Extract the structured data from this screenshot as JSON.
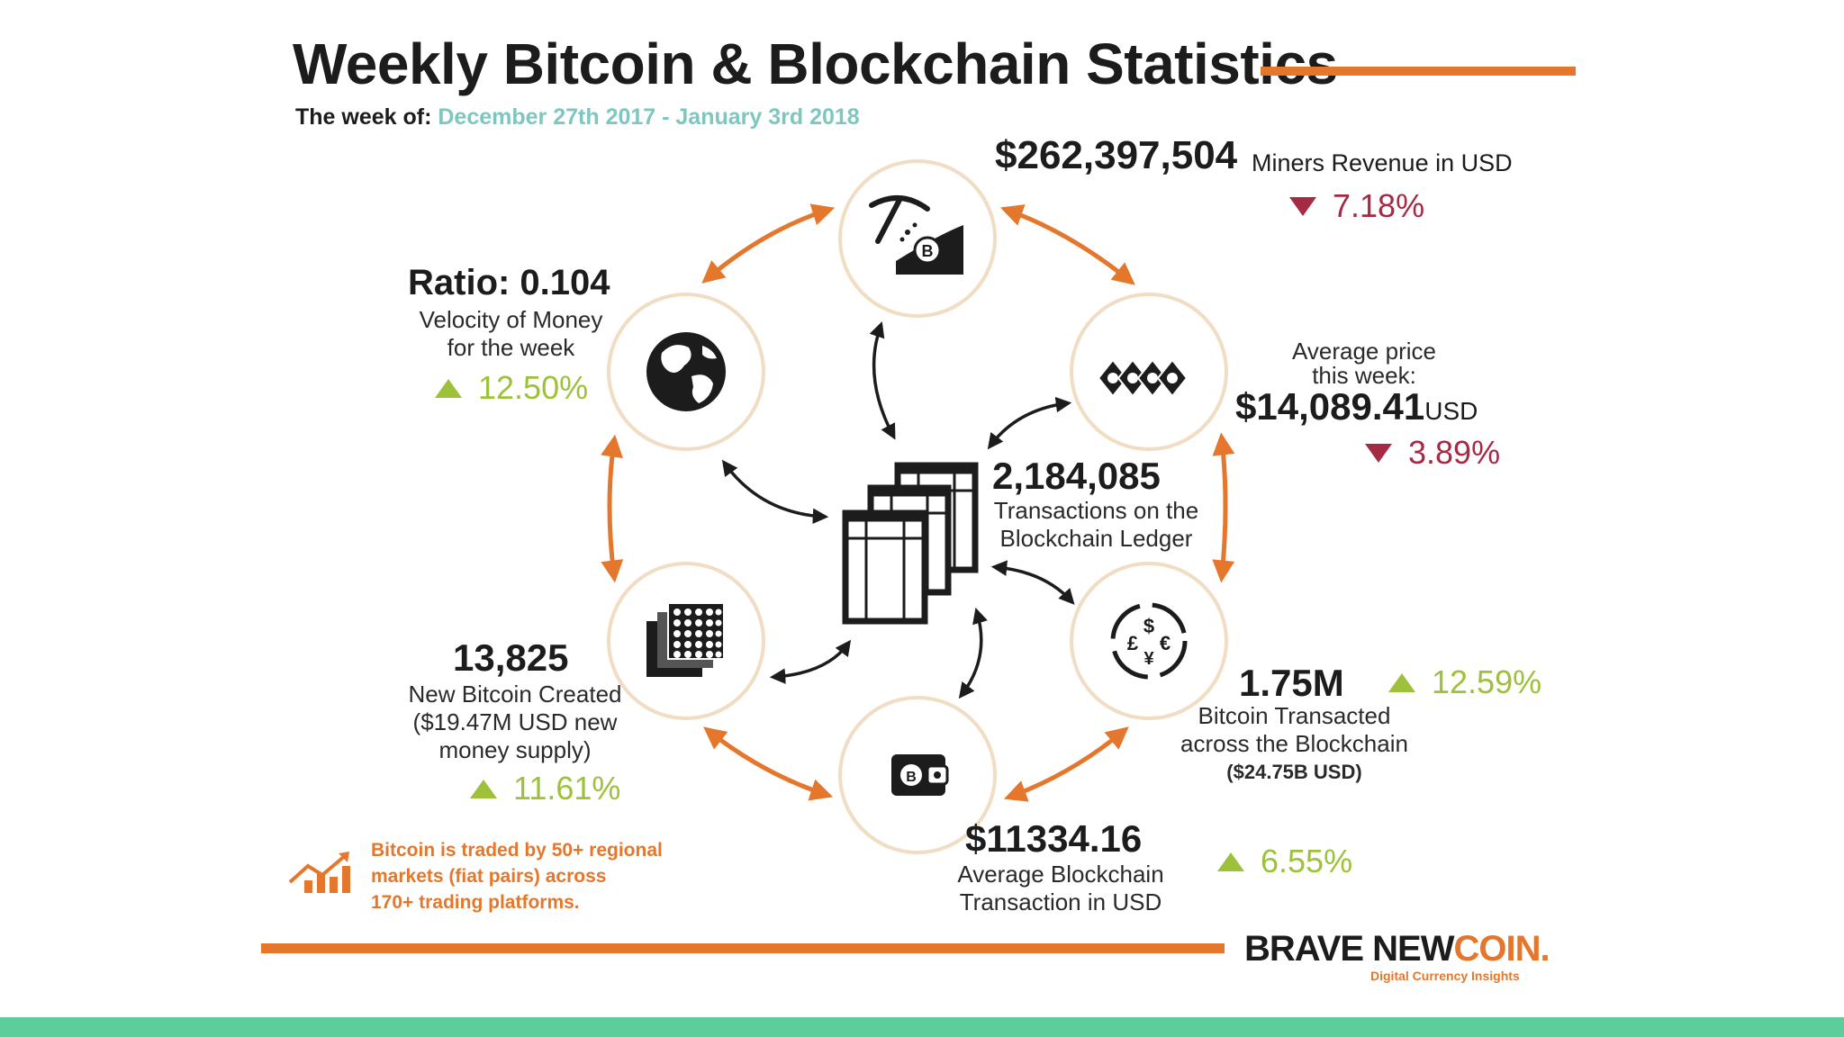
{
  "title": "Weekly Bitcoin & Blockchain Statistics",
  "week_label": "The week of:",
  "week_dates": "December 27th 2017 - January 3rd 2018",
  "miners": {
    "value": "$262,397,504",
    "label": "Miners Revenue in USD",
    "change": "7.18%",
    "direction": "down"
  },
  "price": {
    "line1": "Average price",
    "line2": "this week:",
    "value": "$14,089.41",
    "unit": "USD",
    "change": "3.89%",
    "direction": "down"
  },
  "velocity": {
    "value": "Ratio: 0.104",
    "line1": "Velocity of Money",
    "line2": "for the week",
    "change": "12.50%",
    "direction": "up"
  },
  "transactions": {
    "value": "2,184,085",
    "line1": "Transactions on the",
    "line2": "Blockchain Ledger"
  },
  "new_bitcoin": {
    "value": "13,825",
    "line1": "New Bitcoin Created",
    "line2": "($19.47M USD new",
    "line3": "money supply)",
    "change": "11.61%",
    "direction": "up"
  },
  "transacted": {
    "value": "1.75M",
    "line1": "Bitcoin Transacted",
    "line2": "across the Blockchain",
    "line3": "($24.75B USD)",
    "change": "12.59%",
    "direction": "up"
  },
  "avg_tx": {
    "value": "$11334.16",
    "line1": "Average Blockchain",
    "line2": "Transaction in USD",
    "change": "6.55%",
    "direction": "up"
  },
  "footnote": {
    "line1": "Bitcoin is traded by 50+ regional",
    "line2": "markets (fiat pairs) across",
    "line3": "170+ trading platforms."
  },
  "brand": {
    "part1": "BRAVE NEW",
    "part2": "COIN.",
    "tagline": "Digital Currency Insights"
  },
  "icons": [
    "pickaxe-mining-icon",
    "coins-stack-icon",
    "currency-exchange-icon",
    "wallet-icon",
    "bitcoin-grid-icon",
    "globe-icon",
    "ledger-pages-icon",
    "chart-growth-icon"
  ],
  "colors": {
    "accent_orange": "#e4772c",
    "up_green": "#9dc13a",
    "down_red": "#a52b45",
    "date_teal": "#7ec6c0",
    "footer_green": "#5ccd9b",
    "circle_ring": "#f1dcc4"
  }
}
